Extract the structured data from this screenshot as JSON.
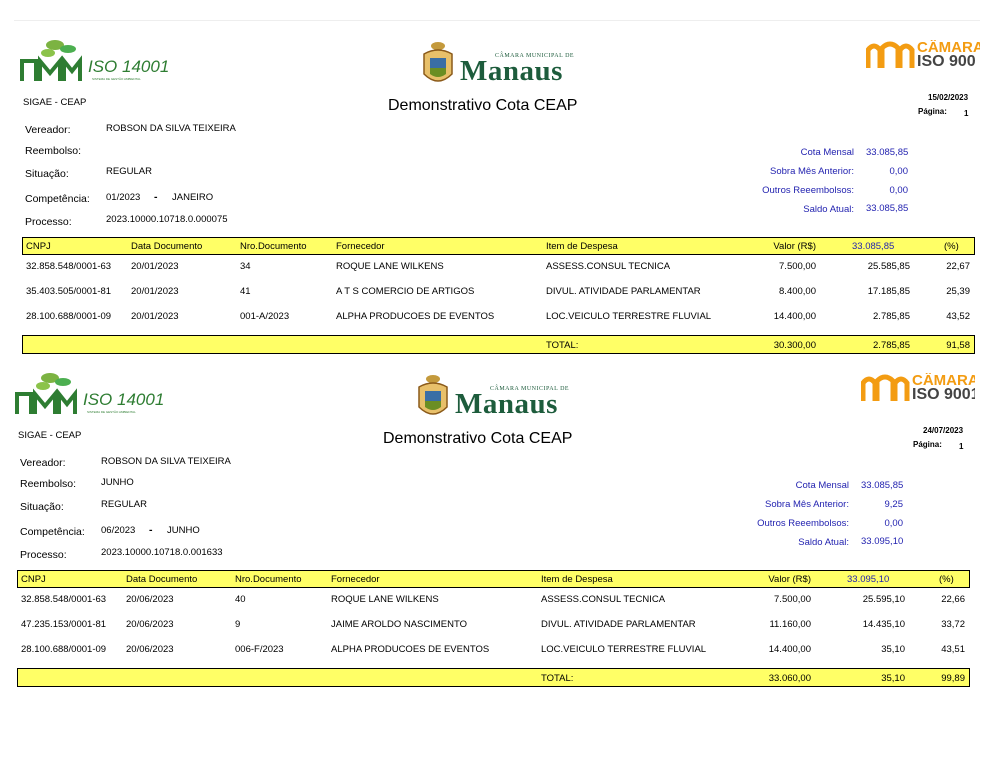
{
  "reports": [
    {
      "system": "SIGAE - CEAP",
      "title": "Demonstrativo Cota CEAP",
      "date": "15/02/2023",
      "page_label": "Página:",
      "page_number": "1",
      "logos": {
        "left_text": "ISO 14001",
        "left_subtext": "SISTEMA DE GESTÃO AMBIENTAL",
        "center_top": "CÂMARA MUNICIPAL DE",
        "center_main": "Manaus",
        "right_top": "CÂMARA",
        "right_bottom": "ISO 900"
      },
      "labels": {
        "vereador": "Vereador:",
        "reembolso": "Reembolso:",
        "situacao": "Situação:",
        "competencia": "Competência:",
        "processo": "Processo:"
      },
      "values": {
        "vereador": "ROBSON DA SILVA TEIXEIRA",
        "reembolso": "",
        "situacao": "REGULAR",
        "competencia_num": "01/2023",
        "competencia_sep": "-",
        "competencia_mes": "JANEIRO",
        "processo": "2023.10000.10718.0.000075"
      },
      "cota": {
        "cota_mensal_label": "Cota Mensal",
        "cota_mensal": "33.085,85",
        "sobra_label": "Sobra Mês Anterior:",
        "sobra": "0,00",
        "outros_label": "Outros Reeembolsos:",
        "outros": "0,00",
        "saldo_label": "Saldo Atual:",
        "saldo": "33.085,85"
      },
      "headers": {
        "cnpj": "CNPJ",
        "data": "Data Documento",
        "nro": "Nro.Documento",
        "fornecedor": "Fornecedor",
        "item": "Item de Despesa",
        "valor": "Valor (R$)",
        "saldo": "33.085,85",
        "pct": "(%)"
      },
      "rows": [
        {
          "cnpj": "32.858.548/0001-63",
          "data": "20/01/2023",
          "nro": "34",
          "fornecedor": "ROQUE LANE WILKENS",
          "item": "ASSESS.CONSUL TECNICA",
          "valor": "7.500,00",
          "saldo": "25.585,85",
          "pct": "22,67"
        },
        {
          "cnpj": "35.403.505/0001-81",
          "data": "20/01/2023",
          "nro": "41",
          "fornecedor": "A T S COMERCIO DE ARTIGOS",
          "item": "DIVUL. ATIVIDADE PARLAMENTAR",
          "valor": "8.400,00",
          "saldo": "17.185,85",
          "pct": "25,39"
        },
        {
          "cnpj": "28.100.688/0001-09",
          "data": "20/01/2023",
          "nro": "001-A/2023",
          "fornecedor": "ALPHA PRODUCOES DE EVENTOS",
          "item": "LOC.VEICULO TERRESTRE FLUVIAL",
          "valor": "14.400,00",
          "saldo": "2.785,85",
          "pct": "43,52"
        }
      ],
      "total": {
        "label": "TOTAL:",
        "valor": "30.300,00",
        "saldo": "2.785,85",
        "pct": "91,58"
      }
    },
    {
      "system": "SIGAE - CEAP",
      "title": "Demonstrativo Cota CEAP",
      "date": "24/07/2023",
      "page_label": "Página:",
      "page_number": "1",
      "logos": {
        "left_text": "ISO 14001",
        "left_subtext": "SISTEMA DE GESTÃO AMBIENTAL",
        "center_top": "CÂMARA MUNICIPAL DE",
        "center_main": "Manaus",
        "right_top": "CÂMARA",
        "right_bottom": "ISO 9001"
      },
      "labels": {
        "vereador": "Vereador:",
        "reembolso": "Reembolso:",
        "situacao": "Situação:",
        "competencia": "Competência:",
        "processo": "Processo:"
      },
      "values": {
        "vereador": "ROBSON DA SILVA TEIXEIRA",
        "reembolso": "JUNHO",
        "situacao": "REGULAR",
        "competencia_num": "06/2023",
        "competencia_sep": "-",
        "competencia_mes": "JUNHO",
        "processo": "2023.10000.10718.0.001633"
      },
      "cota": {
        "cota_mensal_label": "Cota Mensal",
        "cota_mensal": "33.085,85",
        "sobra_label": "Sobra Mês Anterior:",
        "sobra": "9,25",
        "outros_label": "Outros Reeembolsos:",
        "outros": "0,00",
        "saldo_label": "Saldo Atual:",
        "saldo": "33.095,10"
      },
      "headers": {
        "cnpj": "CNPJ",
        "data": "Data Documento",
        "nro": "Nro.Documento",
        "fornecedor": "Fornecedor",
        "item": "Item de Despesa",
        "valor": "Valor (R$)",
        "saldo": "33.095,10",
        "pct": "(%)"
      },
      "rows": [
        {
          "cnpj": "32.858.548/0001-63",
          "data": "20/06/2023",
          "nro": "40",
          "fornecedor": "ROQUE LANE WILKENS",
          "item": "ASSESS.CONSUL TECNICA",
          "valor": "7.500,00",
          "saldo": "25.595,10",
          "pct": "22,66"
        },
        {
          "cnpj": "47.235.153/0001-81",
          "data": "20/06/2023",
          "nro": "9",
          "fornecedor": "JAIME AROLDO NASCIMENTO",
          "item": "DIVUL. ATIVIDADE PARLAMENTAR",
          "valor": "11.160,00",
          "saldo": "14.435,10",
          "pct": "33,72"
        },
        {
          "cnpj": "28.100.688/0001-09",
          "data": "20/06/2023",
          "nro": "006-F/2023",
          "fornecedor": "ALPHA PRODUCOES DE EVENTOS",
          "item": "LOC.VEICULO TERRESTRE FLUVIAL",
          "valor": "14.400,00",
          "saldo": "35,10",
          "pct": "43,51"
        }
      ],
      "total": {
        "label": "TOTAL:",
        "valor": "33.060,00",
        "saldo": "35,10",
        "pct": "99,89"
      }
    }
  ]
}
